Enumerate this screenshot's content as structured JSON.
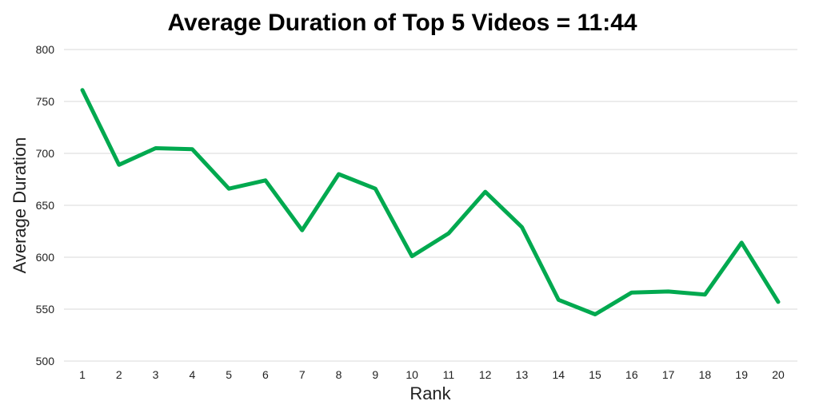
{
  "chart_data": {
    "type": "line",
    "title": "Average Duration of Top 5 Videos = 11:44",
    "xlabel": "Rank",
    "ylabel": "Average Duration",
    "x": [
      1,
      2,
      3,
      4,
      5,
      6,
      7,
      8,
      9,
      10,
      11,
      12,
      13,
      14,
      15,
      16,
      17,
      18,
      19,
      20
    ],
    "series": [
      {
        "values": [
          761,
          689,
          705,
          704,
          666,
          674,
          626,
          680,
          666,
          601,
          623,
          663,
          629,
          559,
          545,
          566,
          567,
          564,
          614,
          557
        ],
        "color": "#00a94f"
      }
    ],
    "ylim": [
      500,
      800
    ],
    "yticks": [
      500,
      550,
      600,
      650,
      700,
      750,
      800
    ],
    "grid": true,
    "legend": "none"
  }
}
